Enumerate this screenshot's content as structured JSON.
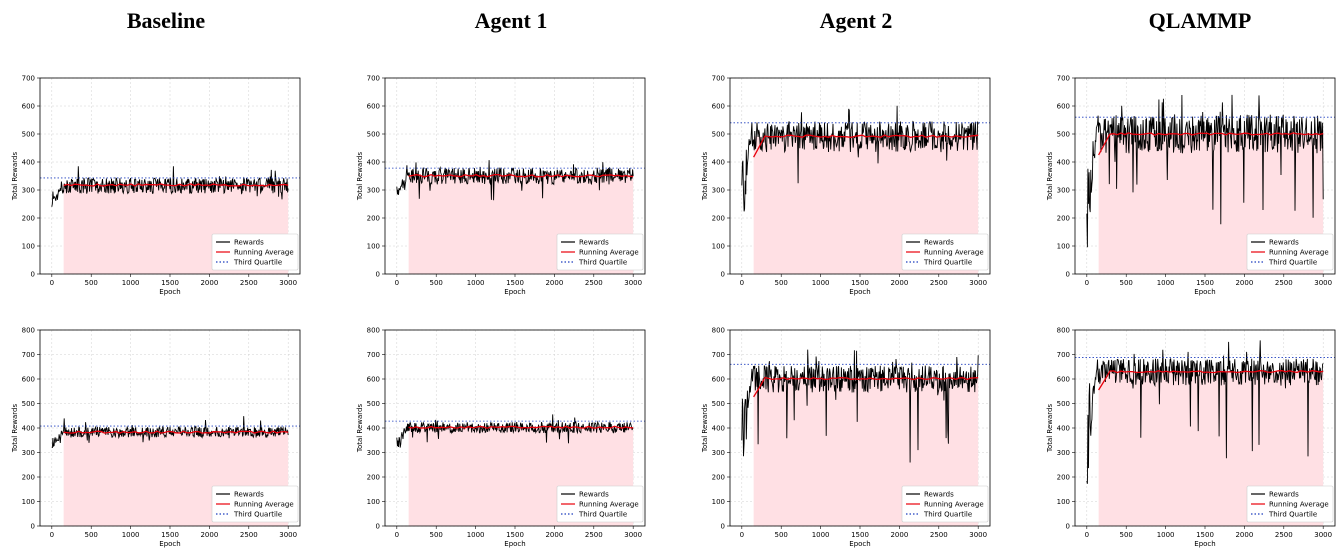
{
  "column_titles": [
    "Baseline",
    "Agent 1",
    "Agent 2",
    "QLAMMP"
  ],
  "colors": {
    "rewards": "#000000",
    "running_average": "#e8000b",
    "third_quartile": "#1f3fbf",
    "shade": "#ffe0e4"
  },
  "chart_data": [
    {
      "type": "line",
      "group": "Baseline",
      "xlabel": "Epoch",
      "ylabel": "Total Rewards",
      "xlim": [
        0,
        3000
      ],
      "ylim": [
        0,
        700
      ],
      "xticks": [
        0,
        500,
        1000,
        1500,
        2000,
        2500,
        3000
      ],
      "yticks": [
        0,
        100,
        200,
        300,
        400,
        500,
        600,
        700
      ],
      "grid": true,
      "legend_position": "lower-right",
      "series": [
        {
          "name": "Rewards",
          "mean": 315,
          "spread": 28,
          "low": 240,
          "high": 395
        },
        {
          "name": "Running Average",
          "value": 318
        },
        {
          "name": "Third Quartile",
          "value": 343
        }
      ]
    },
    {
      "type": "line",
      "group": "Agent 1",
      "xlabel": "Epoch",
      "ylabel": "Total Rewards",
      "xlim": [
        0,
        3000
      ],
      "ylim": [
        0,
        700
      ],
      "xticks": [
        0,
        500,
        1000,
        1500,
        2000,
        2500,
        3000
      ],
      "yticks": [
        0,
        100,
        200,
        300,
        400,
        500,
        600,
        700
      ],
      "grid": true,
      "legend_position": "lower-right",
      "series": [
        {
          "name": "Rewards",
          "mean": 350,
          "spread": 30,
          "low": 240,
          "high": 410
        },
        {
          "name": "Running Average",
          "value": 351
        },
        {
          "name": "Third Quartile",
          "value": 378
        }
      ]
    },
    {
      "type": "line",
      "group": "Agent 2",
      "xlabel": "Epoch",
      "ylabel": "Total Rewards",
      "xlim": [
        0,
        3000
      ],
      "ylim": [
        0,
        700
      ],
      "xticks": [
        0,
        500,
        1000,
        1500,
        2000,
        2500,
        3000
      ],
      "yticks": [
        0,
        100,
        200,
        300,
        400,
        500,
        600,
        700
      ],
      "grid": true,
      "legend_position": "lower-right",
      "series": [
        {
          "name": "Rewards",
          "mean": 490,
          "spread": 55,
          "low": 130,
          "high": 620
        },
        {
          "name": "Running Average",
          "value": 492
        },
        {
          "name": "Third Quartile",
          "value": 540
        }
      ]
    },
    {
      "type": "line",
      "group": "QLAMMP",
      "xlabel": "Epoch",
      "ylabel": "Total Rewards",
      "xlim": [
        0,
        3000
      ],
      "ylim": [
        0,
        700
      ],
      "xticks": [
        0,
        500,
        1000,
        1500,
        2000,
        2500,
        3000
      ],
      "yticks": [
        0,
        100,
        200,
        300,
        400,
        500,
        600,
        700
      ],
      "grid": true,
      "legend_position": "lower-right",
      "series": [
        {
          "name": "Rewards",
          "mean": 500,
          "spread": 70,
          "low": 80,
          "high": 640
        },
        {
          "name": "Running Average",
          "value": 500
        },
        {
          "name": "Third Quartile",
          "value": 560
        }
      ]
    },
    {
      "type": "line",
      "group": "Baseline",
      "xlabel": "Epoch",
      "ylabel": "Total Rewards",
      "xlim": [
        0,
        3000
      ],
      "ylim": [
        0,
        800
      ],
      "xticks": [
        0,
        500,
        1000,
        1500,
        2000,
        2500,
        3000
      ],
      "yticks": [
        0,
        100,
        200,
        300,
        400,
        500,
        600,
        700,
        800
      ],
      "grid": true,
      "legend_position": "lower-right",
      "series": [
        {
          "name": "Rewards",
          "mean": 383,
          "spread": 22,
          "low": 320,
          "high": 450
        },
        {
          "name": "Running Average",
          "value": 383
        },
        {
          "name": "Third Quartile",
          "value": 408
        }
      ]
    },
    {
      "type": "line",
      "group": "Agent 1",
      "xlabel": "Epoch",
      "ylabel": "Total Rewards",
      "xlim": [
        0,
        3000
      ],
      "ylim": [
        0,
        800
      ],
      "xticks": [
        0,
        500,
        1000,
        1500,
        2000,
        2500,
        3000
      ],
      "yticks": [
        0,
        100,
        200,
        300,
        400,
        500,
        600,
        700,
        800
      ],
      "grid": true,
      "legend_position": "lower-right",
      "series": [
        {
          "name": "Rewards",
          "mean": 402,
          "spread": 22,
          "low": 310,
          "high": 460
        },
        {
          "name": "Running Average",
          "value": 403
        },
        {
          "name": "Third Quartile",
          "value": 428
        }
      ]
    },
    {
      "type": "line",
      "group": "Agent 2",
      "xlabel": "Epoch",
      "ylabel": "Total Rewards",
      "xlim": [
        0,
        3000
      ],
      "ylim": [
        0,
        800
      ],
      "xticks": [
        0,
        500,
        1000,
        1500,
        2000,
        2500,
        3000
      ],
      "yticks": [
        0,
        100,
        200,
        300,
        400,
        500,
        600,
        700,
        800
      ],
      "grid": true,
      "legend_position": "lower-right",
      "series": [
        {
          "name": "Rewards",
          "mean": 600,
          "spread": 55,
          "low": 170,
          "high": 730
        },
        {
          "name": "Running Average",
          "value": 602
        },
        {
          "name": "Third Quartile",
          "value": 660
        }
      ]
    },
    {
      "type": "line",
      "group": "QLAMMP",
      "xlabel": "Epoch",
      "ylabel": "Total Rewards",
      "xlim": [
        0,
        3000
      ],
      "ylim": [
        0,
        800
      ],
      "xticks": [
        0,
        500,
        1000,
        1500,
        2000,
        2500,
        3000
      ],
      "yticks": [
        0,
        100,
        200,
        300,
        400,
        500,
        600,
        700,
        800
      ],
      "grid": true,
      "legend_position": "lower-right",
      "series": [
        {
          "name": "Rewards",
          "mean": 628,
          "spread": 55,
          "low": 120,
          "high": 760
        },
        {
          "name": "Running Average",
          "value": 630
        },
        {
          "name": "Third Quartile",
          "value": 688
        }
      ]
    }
  ]
}
